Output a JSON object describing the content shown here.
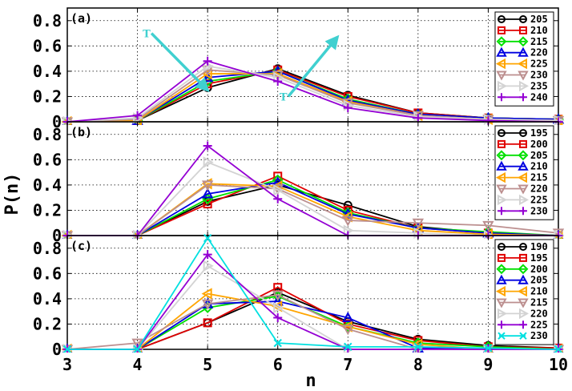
{
  "ylabel": "P(n)",
  "xlabel": "n",
  "chart_data": [
    {
      "type": "line",
      "panel_label": "(a)",
      "xlim": [
        3,
        10
      ],
      "ylim": [
        0,
        0.9
      ],
      "x_ticks": [
        3,
        4,
        5,
        6,
        7,
        8,
        9,
        10
      ],
      "y_ticks": [
        0,
        0.2,
        0.4,
        0.6,
        0.8
      ],
      "grid": true,
      "legend_position": "top-right",
      "x": [
        3,
        4,
        5,
        6,
        7,
        8,
        9,
        10
      ],
      "annotations": [
        {
          "text": "T",
          "arrow_from": [
            4.2,
            0.7
          ],
          "arrow_to": [
            5.0,
            0.25
          ],
          "color": "#40d0d0"
        },
        {
          "text": "T",
          "arrow_from": [
            6.15,
            0.2
          ],
          "arrow_to": [
            6.85,
            0.67
          ],
          "color": "#40d0d0"
        }
      ],
      "series": [
        {
          "name": "205",
          "color": "#000000",
          "marker": "circle",
          "values": [
            0,
            0.01,
            0.27,
            0.42,
            0.21,
            0.07,
            0.03,
            0.02
          ]
        },
        {
          "name": "210",
          "color": "#e00000",
          "marker": "square",
          "values": [
            0,
            0.01,
            0.3,
            0.41,
            0.2,
            0.07,
            0.03,
            0.02
          ]
        },
        {
          "name": "215",
          "color": "#00e000",
          "marker": "diamond",
          "values": [
            0,
            0.01,
            0.32,
            0.4,
            0.18,
            0.06,
            0.03,
            0.02
          ]
        },
        {
          "name": "220",
          "color": "#0000e0",
          "marker": "triangle-up",
          "values": [
            0,
            0.01,
            0.35,
            0.4,
            0.17,
            0.06,
            0.03,
            0.02
          ]
        },
        {
          "name": "225",
          "color": "#ffa500",
          "marker": "triangle-left",
          "values": [
            0,
            0.01,
            0.38,
            0.38,
            0.16,
            0.05,
            0.02,
            0.01
          ]
        },
        {
          "name": "230",
          "color": "#bc8f8f",
          "marker": "triangle-down",
          "values": [
            0,
            0.02,
            0.41,
            0.37,
            0.15,
            0.05,
            0.02,
            0.01
          ]
        },
        {
          "name": "235",
          "color": "#d3d3d3",
          "marker": "triangle-right",
          "values": [
            0,
            0.03,
            0.44,
            0.35,
            0.13,
            0.04,
            0.02,
            0.01
          ]
        },
        {
          "name": "240",
          "color": "#9400d3",
          "marker": "plus",
          "values": [
            0,
            0.05,
            0.48,
            0.32,
            0.11,
            0.03,
            0.01,
            0.0
          ]
        }
      ]
    },
    {
      "type": "line",
      "panel_label": "(b)",
      "xlim": [
        3,
        10
      ],
      "ylim": [
        0,
        0.9
      ],
      "x_ticks": [
        3,
        4,
        5,
        6,
        7,
        8,
        9,
        10
      ],
      "y_ticks": [
        0,
        0.2,
        0.4,
        0.6,
        0.8
      ],
      "grid": true,
      "legend_position": "top-right",
      "x": [
        3,
        4,
        5,
        6,
        7,
        8,
        9,
        10
      ],
      "series": [
        {
          "name": "195",
          "color": "#000000",
          "marker": "circle",
          "values": [
            0,
            0,
            0.27,
            0.4,
            0.24,
            0.07,
            0.02,
            0.0
          ]
        },
        {
          "name": "200",
          "color": "#e00000",
          "marker": "square",
          "values": [
            0,
            0,
            0.25,
            0.47,
            0.2,
            0.06,
            0.02,
            0.0
          ]
        },
        {
          "name": "205",
          "color": "#00e000",
          "marker": "diamond",
          "values": [
            0,
            0,
            0.29,
            0.44,
            0.18,
            0.06,
            0.03,
            0.0
          ]
        },
        {
          "name": "210",
          "color": "#0000e0",
          "marker": "triangle-up",
          "values": [
            0,
            0,
            0.33,
            0.42,
            0.17,
            0.06,
            0.02,
            0.0
          ]
        },
        {
          "name": "215",
          "color": "#ffa500",
          "marker": "triangle-left",
          "values": [
            0,
            0,
            0.41,
            0.39,
            0.15,
            0.04,
            0.01,
            0.0
          ]
        },
        {
          "name": "220",
          "color": "#bc8f8f",
          "marker": "triangle-down",
          "values": [
            0,
            0,
            0.4,
            0.37,
            0.12,
            0.1,
            0.08,
            0.02
          ]
        },
        {
          "name": "225",
          "color": "#d3d3d3",
          "marker": "triangle-right",
          "values": [
            0,
            0,
            0.58,
            0.36,
            0.04,
            0.02,
            0.0,
            0.0
          ]
        },
        {
          "name": "230",
          "color": "#9400d3",
          "marker": "plus",
          "values": [
            0,
            0,
            0.71,
            0.29,
            0.0,
            0.0,
            0.0,
            0.0
          ]
        }
      ]
    },
    {
      "type": "line",
      "panel_label": "(c)",
      "xlim": [
        3,
        10
      ],
      "ylim": [
        0,
        0.9
      ],
      "x_ticks": [
        3,
        4,
        5,
        6,
        7,
        8,
        9,
        10
      ],
      "y_ticks": [
        0,
        0.2,
        0.4,
        0.6,
        0.8
      ],
      "grid": true,
      "legend_position": "top-right",
      "x": [
        3,
        4,
        5,
        6,
        7,
        8,
        9,
        10
      ],
      "series": [
        {
          "name": "190",
          "color": "#000000",
          "marker": "circle",
          "values": [
            0,
            0,
            0.21,
            0.45,
            0.22,
            0.08,
            0.03,
            0.01
          ]
        },
        {
          "name": "195",
          "color": "#e00000",
          "marker": "square",
          "values": [
            0,
            0,
            0.21,
            0.49,
            0.2,
            0.07,
            0.02,
            0.01
          ]
        },
        {
          "name": "200",
          "color": "#00e000",
          "marker": "diamond",
          "values": [
            0,
            0,
            0.33,
            0.42,
            0.18,
            0.05,
            0.02,
            0.0
          ]
        },
        {
          "name": "205",
          "color": "#0000e0",
          "marker": "triangle-up",
          "values": [
            0,
            0,
            0.36,
            0.38,
            0.25,
            0.01,
            0.0,
            0.0
          ]
        },
        {
          "name": "210",
          "color": "#ffa500",
          "marker": "triangle-left",
          "values": [
            0,
            0,
            0.44,
            0.34,
            0.18,
            0.04,
            0.0,
            0.0
          ]
        },
        {
          "name": "215",
          "color": "#bc8f8f",
          "marker": "triangle-down",
          "values": [
            0,
            0.05,
            0.36,
            0.43,
            0.16,
            0.0,
            0.0,
            0.0
          ]
        },
        {
          "name": "220",
          "color": "#d3d3d3",
          "marker": "triangle-right",
          "values": [
            0,
            0,
            0.66,
            0.33,
            0.0,
            0.0,
            0.0,
            0.0
          ]
        },
        {
          "name": "225",
          "color": "#9400d3",
          "marker": "plus",
          "values": [
            0,
            0,
            0.75,
            0.25,
            0.0,
            0.0,
            0.0,
            0.0
          ]
        },
        {
          "name": "230",
          "color": "#00e0e0",
          "marker": "x",
          "values": [
            0,
            0,
            0.88,
            0.05,
            0.02,
            0.02,
            0.01,
            0.0
          ]
        }
      ]
    }
  ]
}
